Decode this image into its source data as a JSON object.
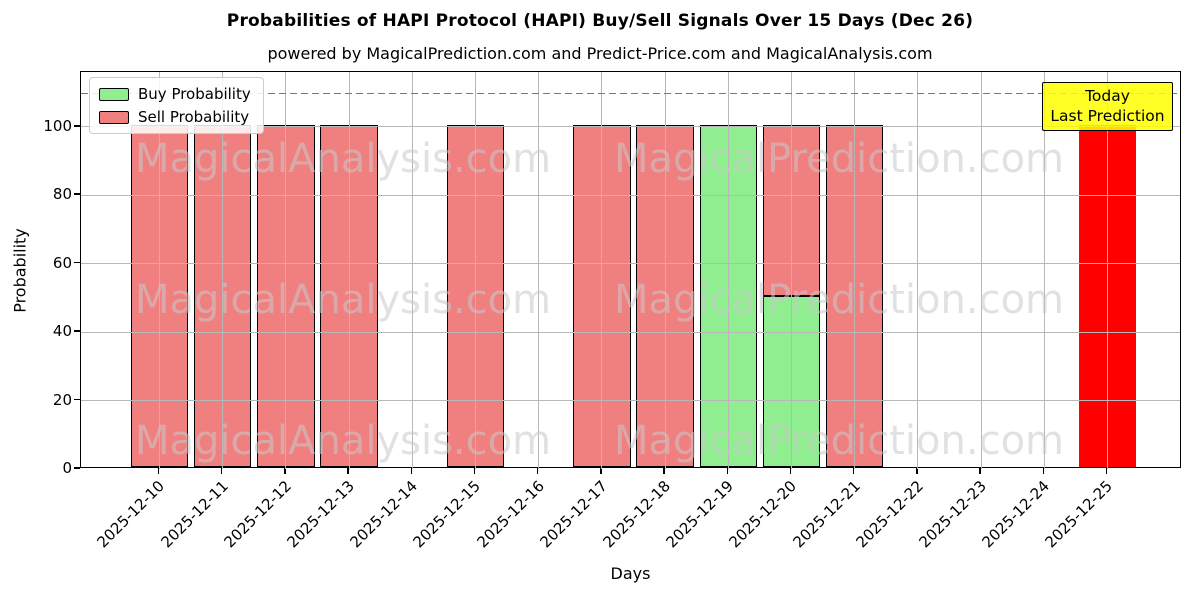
{
  "title": "Probabilities of HAPI Protocol (HAPI) Buy/Sell Signals Over 15 Days (Dec 26)",
  "subtitle": "powered by MagicalPrediction.com and Predict-Price.com and MagicalAnalysis.com",
  "axes": {
    "xlabel": "Days",
    "ylabel": "Probability",
    "yticks": [
      0,
      20,
      40,
      60,
      80,
      100
    ],
    "ylim": [
      0,
      116
    ],
    "dashed_line_y": 110,
    "grid": "on"
  },
  "legend": {
    "position": "upper-left",
    "items": [
      {
        "label": "Buy Probability",
        "color": "#90EE90"
      },
      {
        "label": "Sell Probability",
        "color": "#F08080"
      }
    ]
  },
  "annotation": {
    "line1": "Today",
    "line2": "Last Prediction",
    "bg_color": "#FFFF00",
    "border_color": "#000000"
  },
  "watermarks": {
    "texts": [
      "MagicalAnalysis.com",
      "MagicalPrediction.com"
    ],
    "rows": 3
  },
  "colors": {
    "buy": "#90EE90",
    "sell": "#F08080",
    "today": "#FF0000",
    "bar_edge": "#000000",
    "grid": "#b7b7b7",
    "dashed_line": "#787878"
  },
  "chart_data": {
    "type": "bar",
    "stacked": true,
    "title": "Probabilities of HAPI Protocol (HAPI) Buy/Sell Signals Over 15 Days (Dec 26)",
    "xlabel": "Days",
    "ylabel": "Probability",
    "ylim": [
      0,
      116
    ],
    "legend_position": "upper-left",
    "grid": true,
    "categories": [
      "2025-12-10",
      "2025-12-11",
      "2025-12-12",
      "2025-12-13",
      "2025-12-14",
      "2025-12-15",
      "2025-12-16",
      "2025-12-17",
      "2025-12-18",
      "2025-12-19",
      "2025-12-20",
      "2025-12-21",
      "2025-12-22",
      "2025-12-23",
      "2025-12-24",
      "2025-12-25"
    ],
    "series": [
      {
        "name": "Buy Probability",
        "color": "#90EE90",
        "values": [
          0,
          0,
          0,
          0,
          0,
          0,
          0,
          0,
          0,
          100,
          50,
          0,
          0,
          0,
          0,
          0
        ]
      },
      {
        "name": "Sell Probability",
        "color": "#F08080",
        "values": [
          100,
          100,
          100,
          100,
          0,
          100,
          0,
          100,
          100,
          0,
          50,
          100,
          0,
          0,
          0,
          0
        ]
      },
      {
        "name": "Today Last Prediction",
        "color": "#FF0000",
        "values": [
          0,
          0,
          0,
          0,
          0,
          0,
          0,
          0,
          0,
          0,
          0,
          0,
          0,
          0,
          0,
          100
        ]
      }
    ],
    "today_index": 15,
    "reference_line": {
      "y": 110,
      "style": "dashed",
      "color": "#787878"
    }
  }
}
